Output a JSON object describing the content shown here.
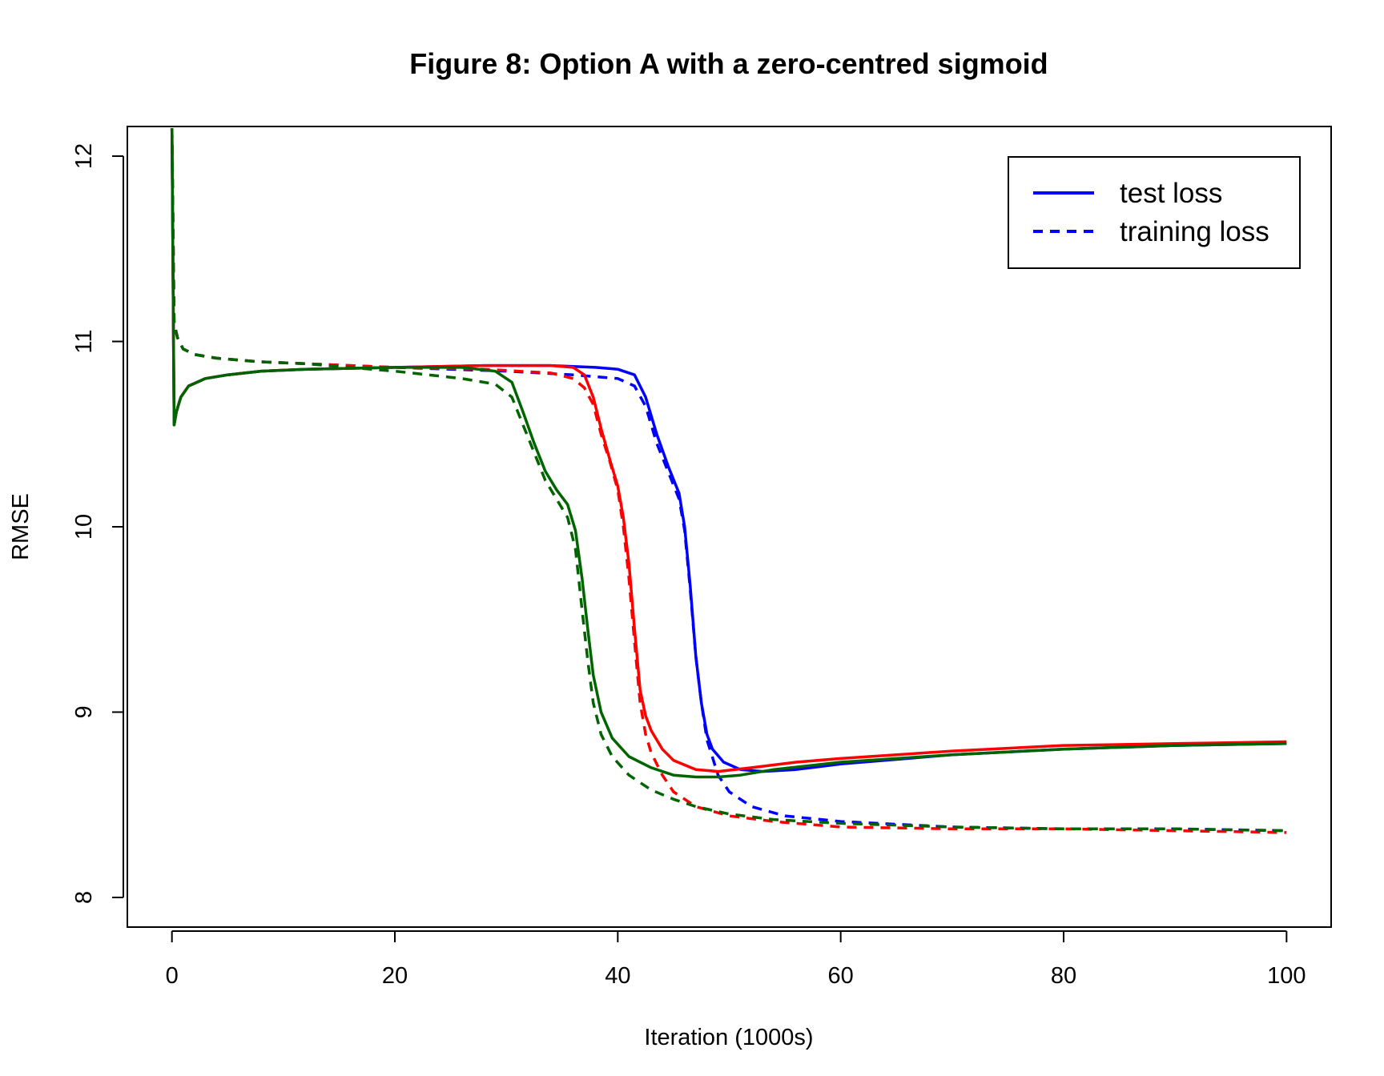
{
  "chart_data": {
    "type": "line",
    "title": "Figure 8: Option A with a zero-centred sigmoid",
    "xlabel": "Iteration (1000s)",
    "ylabel": "RMSE",
    "xlim": [
      -4,
      104
    ],
    "ylim": [
      7.84,
      12.16
    ],
    "x_ticks": [
      0,
      20,
      40,
      60,
      80,
      100
    ],
    "y_ticks": [
      8,
      9,
      10,
      11,
      12
    ],
    "grid": false,
    "legend_position": "top-right",
    "legend": [
      {
        "label": "test loss",
        "linestyle": "solid",
        "color": "#0000ff"
      },
      {
        "label": "training loss",
        "linestyle": "dashed",
        "color": "#0000ff"
      }
    ],
    "series": [
      {
        "color": "#0000ff",
        "linestyle": "solid",
        "role": "test",
        "x": [
          0,
          0.2,
          0.4,
          0.8,
          1.5,
          3,
          5,
          8,
          12,
          20,
          28,
          34,
          38,
          40,
          41.5,
          42.5,
          43.5,
          44.5,
          45.5,
          46,
          46.5,
          47,
          47.5,
          48,
          48.5,
          49.5,
          51,
          53,
          56,
          60,
          70,
          80,
          90,
          100
        ],
        "y": [
          12.15,
          10.55,
          10.62,
          10.7,
          10.76,
          10.8,
          10.82,
          10.84,
          10.85,
          10.86,
          10.87,
          10.87,
          10.86,
          10.85,
          10.82,
          10.7,
          10.5,
          10.33,
          10.18,
          10.0,
          9.68,
          9.3,
          9.05,
          8.88,
          8.8,
          8.73,
          8.69,
          8.68,
          8.69,
          8.72,
          8.77,
          8.8,
          8.82,
          8.83
        ]
      },
      {
        "color": "#0000ff",
        "linestyle": "dashed",
        "role": "training",
        "x": [
          0,
          0.2,
          0.5,
          1,
          2,
          4,
          8,
          12,
          20,
          30,
          36,
          40,
          41.5,
          42.5,
          43.5,
          44.5,
          45.5,
          46,
          46.5,
          47,
          47.5,
          48,
          49,
          50,
          52,
          55,
          60,
          70,
          80,
          90,
          100
        ],
        "y": [
          12.15,
          11.1,
          11.02,
          10.96,
          10.93,
          10.91,
          10.89,
          10.88,
          10.86,
          10.84,
          10.82,
          10.8,
          10.76,
          10.65,
          10.45,
          10.3,
          10.15,
          9.98,
          9.66,
          9.3,
          9.05,
          8.85,
          8.66,
          8.57,
          8.49,
          8.44,
          8.41,
          8.38,
          8.37,
          8.37,
          8.36
        ]
      },
      {
        "color": "#ff0000",
        "linestyle": "solid",
        "role": "test",
        "x": [
          0,
          0.2,
          0.4,
          0.8,
          1.5,
          3,
          5,
          8,
          12,
          20,
          28,
          34,
          36,
          37,
          37.8,
          38.5,
          39.3,
          40,
          40.5,
          41,
          41.5,
          42,
          42.5,
          43,
          44,
          45,
          47,
          49,
          52,
          56,
          60,
          70,
          80,
          90,
          100
        ],
        "y": [
          12.15,
          10.55,
          10.62,
          10.7,
          10.76,
          10.8,
          10.82,
          10.84,
          10.85,
          10.86,
          10.87,
          10.87,
          10.86,
          10.82,
          10.7,
          10.53,
          10.36,
          10.22,
          10.05,
          9.8,
          9.45,
          9.12,
          8.98,
          8.9,
          8.8,
          8.74,
          8.69,
          8.68,
          8.7,
          8.73,
          8.75,
          8.79,
          8.82,
          8.83,
          8.84
        ]
      },
      {
        "color": "#ff0000",
        "linestyle": "dashed",
        "role": "training",
        "x": [
          0,
          0.2,
          0.5,
          1,
          2,
          4,
          8,
          12,
          20,
          28,
          34,
          36,
          37,
          37.8,
          38.5,
          39.3,
          40,
          40.5,
          41,
          41.5,
          42,
          42.5,
          43,
          44,
          45,
          47,
          50,
          54,
          60,
          70,
          80,
          90,
          100
        ],
        "y": [
          12.15,
          11.1,
          11.02,
          10.96,
          10.93,
          10.91,
          10.89,
          10.88,
          10.86,
          10.85,
          10.83,
          10.8,
          10.75,
          10.66,
          10.5,
          10.35,
          10.2,
          10.0,
          9.72,
          9.38,
          9.05,
          8.88,
          8.78,
          8.66,
          8.57,
          8.49,
          8.44,
          8.41,
          8.38,
          8.37,
          8.37,
          8.36,
          8.35
        ]
      },
      {
        "color": "#006400",
        "linestyle": "solid",
        "role": "test",
        "x": [
          0,
          0.2,
          0.4,
          0.8,
          1.5,
          3,
          5,
          8,
          12,
          20,
          26,
          29,
          30.5,
          31.5,
          32.5,
          33.5,
          34.5,
          35.5,
          36.2,
          36.8,
          37.3,
          37.8,
          38.5,
          39.5,
          41,
          43,
          45,
          47,
          49,
          51,
          54,
          60,
          70,
          80,
          90,
          100
        ],
        "y": [
          12.15,
          10.55,
          10.62,
          10.7,
          10.76,
          10.8,
          10.82,
          10.84,
          10.85,
          10.86,
          10.86,
          10.84,
          10.78,
          10.62,
          10.45,
          10.3,
          10.2,
          10.12,
          9.98,
          9.72,
          9.45,
          9.2,
          9.0,
          8.86,
          8.76,
          8.7,
          8.66,
          8.65,
          8.65,
          8.66,
          8.69,
          8.73,
          8.77,
          8.8,
          8.82,
          8.83
        ]
      },
      {
        "color": "#006400",
        "linestyle": "dashed",
        "role": "training",
        "x": [
          0,
          0.2,
          0.5,
          1,
          2,
          4,
          8,
          12,
          20,
          26,
          29,
          30.5,
          31.5,
          32.5,
          33.5,
          34.5,
          35.5,
          36.2,
          36.8,
          37.3,
          37.8,
          38.5,
          39.5,
          41,
          43,
          45,
          47,
          50,
          54,
          60,
          70,
          80,
          90,
          100
        ],
        "y": [
          12.15,
          11.1,
          11.02,
          10.96,
          10.93,
          10.91,
          10.89,
          10.88,
          10.84,
          10.8,
          10.77,
          10.7,
          10.55,
          10.4,
          10.25,
          10.15,
          10.05,
          9.88,
          9.55,
          9.28,
          9.05,
          8.88,
          8.76,
          8.66,
          8.58,
          8.53,
          8.49,
          8.45,
          8.42,
          8.4,
          8.38,
          8.37,
          8.37,
          8.36
        ]
      }
    ]
  }
}
